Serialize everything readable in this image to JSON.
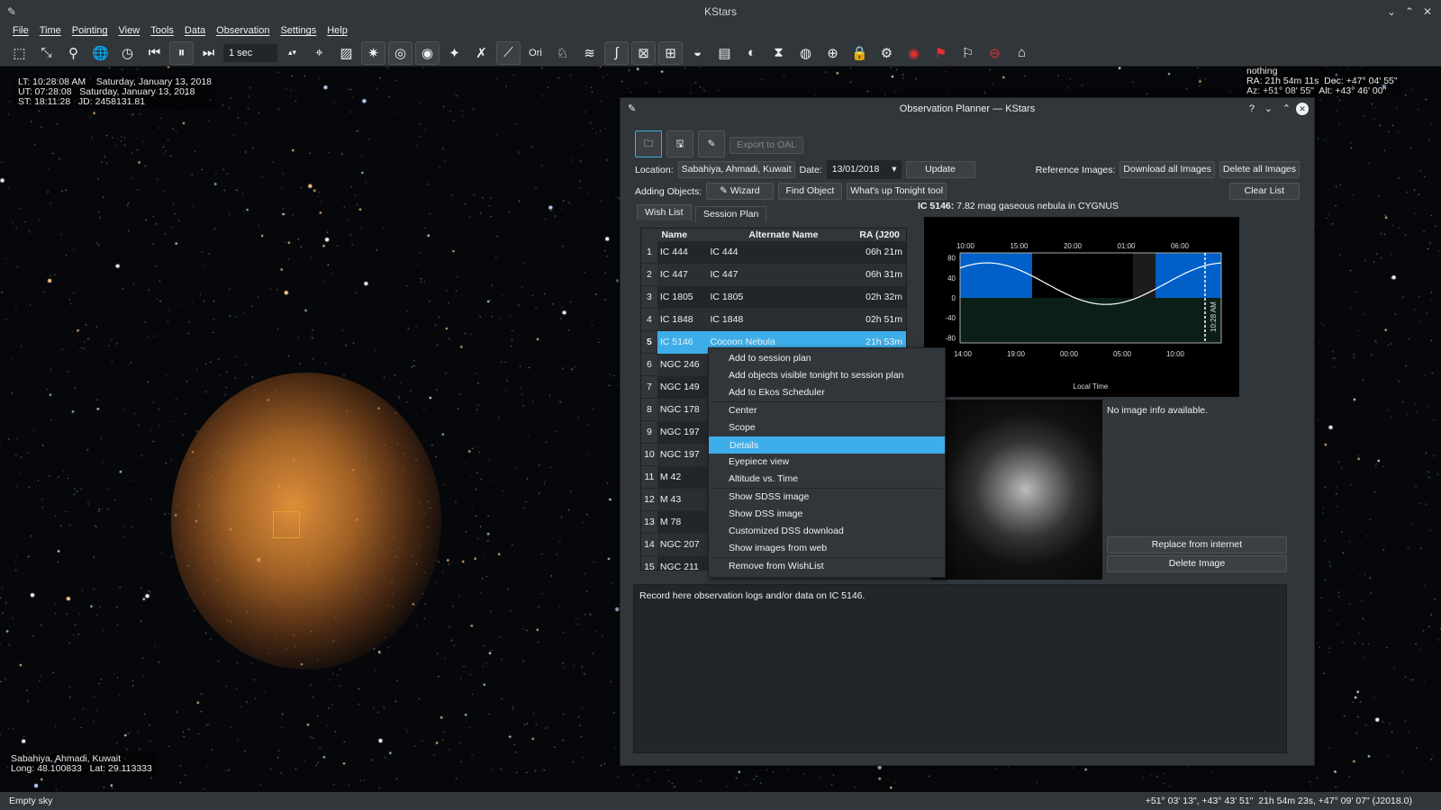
{
  "window": {
    "title": "KStars"
  },
  "menu": [
    "File",
    "Time",
    "Pointing",
    "View",
    "Tools",
    "Data",
    "Observation",
    "Settings",
    "Help"
  ],
  "toolbar": {
    "time_step": "1 sec"
  },
  "sky_info": {
    "lt": "LT: 10:28:08 AM    Saturday, January 13, 2018",
    "ut": "UT: 07:28:08   Saturday, January 13, 2018",
    "st": "ST: 18:11:28   JD: 2458131.81",
    "focus_name": "nothing",
    "focus_radec": "RA: 21h 54m 11s  Dec: +47° 04' 55\"",
    "focus_azalt": "Az: +51° 08' 55\"  Alt: +43° 46' 00\"",
    "location": "Sabahiya, Ahmadi, Kuwait",
    "longlat": "Long: 48.100833   Lat: 29.113333"
  },
  "statusbar": {
    "left": "Empty sky",
    "right": "+51° 03' 13\", +43° 43' 51\"  21h 54m 23s, +47° 09' 07\" (J2018.0)"
  },
  "planner": {
    "title": "Observation Planner — KStars",
    "export": "Export to OAL",
    "location_label": "Location:",
    "location": "Sabahiya, Ahmadi, Kuwait",
    "date_label": "Date:",
    "date": "13/01/2018",
    "update": "Update",
    "ref_label": "Reference Images:",
    "download_all": "Download all Images",
    "delete_all": "Delete all Images",
    "adding_label": "Adding Objects:",
    "wizard": "Wizard",
    "find": "Find Object",
    "whatsup": "What's up Tonight tool",
    "clear": "Clear List",
    "tabs": [
      "Wish List",
      "Session Plan"
    ],
    "columns": [
      "Name",
      "Alternate Name",
      "RA (J200"
    ],
    "rows": [
      [
        "1",
        "IC 444",
        "IC 444",
        "06h 21m"
      ],
      [
        "2",
        "IC 447",
        "IC 447",
        "06h 31m"
      ],
      [
        "3",
        "IC 1805",
        "IC 1805",
        "02h 32m"
      ],
      [
        "4",
        "IC 1848",
        "IC 1848",
        "02h 51m"
      ],
      [
        "5",
        "IC 5146",
        "Cocoon Nebula",
        "21h 53m"
      ],
      [
        "6",
        "NGC 246",
        "",
        ""
      ],
      [
        "7",
        "NGC 149",
        "",
        ""
      ],
      [
        "8",
        "NGC 178",
        "",
        ""
      ],
      [
        "9",
        "NGC 197",
        "",
        ""
      ],
      [
        "10",
        "NGC 197",
        "",
        ""
      ],
      [
        "11",
        "M 42",
        "",
        ""
      ],
      [
        "12",
        "M 43",
        "",
        ""
      ],
      [
        "13",
        "M 78",
        "",
        ""
      ],
      [
        "14",
        "NGC 207",
        "",
        ""
      ],
      [
        "15",
        "NGC 211",
        "",
        ""
      ]
    ],
    "object_title": "IC 5146:",
    "object_desc": " 7.82 mag gaseous nebula in CYGNUS",
    "plot": {
      "top_ticks": [
        "10:00",
        "15:00",
        "20:00",
        "01:00",
        "06:00"
      ],
      "bottom_ticks": [
        "14:00",
        "19:00",
        "00:00",
        "05:00",
        "10:00"
      ],
      "y_ticks": [
        "80",
        "40",
        "0",
        "-40",
        "-80"
      ],
      "xlabel": "Local Time",
      "now_label": "10:28 AM"
    },
    "no_image": "No image info available.",
    "replace": "Replace from internet",
    "delete_image": "Delete Image",
    "notes": "Record here observation logs and/or data on IC 5146.",
    "context_menu": [
      [
        "Add to session plan",
        "Add objects visible tonight to session plan",
        "Add to Ekos Scheduler"
      ],
      [
        "Center",
        "Scope",
        "Details",
        "Eyepiece view",
        "Altitude vs. Time"
      ],
      [
        "Show SDSS image",
        "Show DSS image",
        "Customized DSS download",
        "Show images from web"
      ],
      [
        "Remove from WishList"
      ]
    ],
    "highlighted": "Details"
  }
}
